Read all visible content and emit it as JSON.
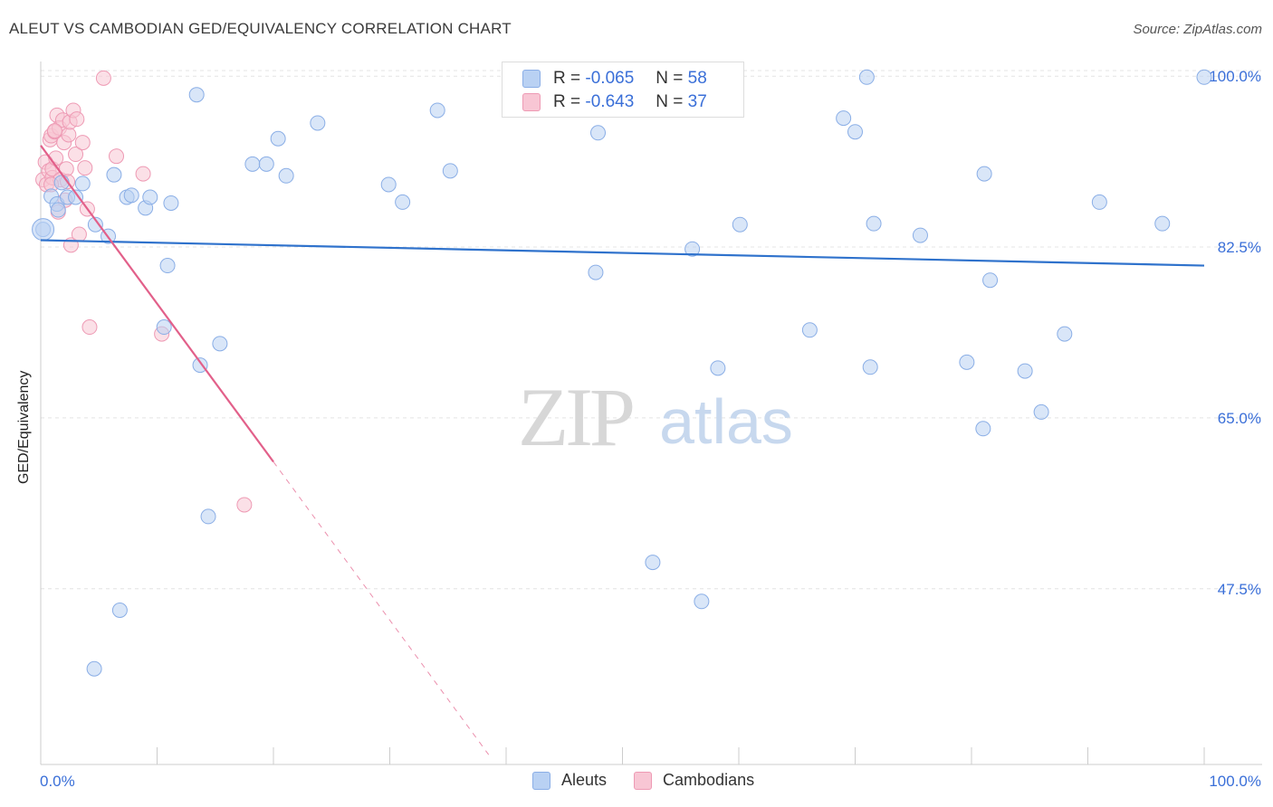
{
  "title": "ALEUT VS CAMBODIAN GED/EQUIVALENCY CORRELATION CHART",
  "source": "Source: ZipAtlas.com",
  "watermark": {
    "zip": "ZIP",
    "atlas": "atlas"
  },
  "legend": {
    "rows": [
      {
        "r_label": "R =",
        "r_value": "-0.065",
        "n_label": "N =",
        "n_value": "58"
      },
      {
        "r_label": "R =",
        "r_value": "-0.643",
        "n_label": "N =",
        "n_value": "37"
      }
    ]
  },
  "bottom_legend": {
    "aleuts": "Aleuts",
    "cambodians": "Cambodians"
  },
  "colors": {
    "aleut_fill": "#b9d1f3",
    "aleut_stroke": "#8aaee6",
    "aleut_line": "#2f72cc",
    "camb_fill": "#f8c6d4",
    "camb_stroke": "#ee9ab4",
    "camb_line": "#e2608a",
    "axis_text": "#3a6fd8"
  },
  "chart_data": {
    "type": "scatter",
    "title": "ALEUT VS CAMBODIAN GED/EQUIVALENCY CORRELATION CHART",
    "xlabel": "",
    "ylabel": "GED/Equivalency",
    "xlim": [
      0,
      100
    ],
    "ylim": [
      29.5,
      101.5
    ],
    "x_tick_labels": [
      "0.0%",
      "100.0%"
    ],
    "y_ticks": [
      47.5,
      65.0,
      82.5,
      100.0
    ],
    "y_tick_labels": [
      "47.5%",
      "65.0%",
      "82.5%",
      "100.0%"
    ],
    "series": [
      {
        "name": "Aleuts",
        "R": -0.065,
        "N": 58,
        "trend": {
          "x": [
            0,
            100
          ],
          "y": [
            83.2,
            80.6
          ]
        },
        "points": [
          [
            0.2,
            84.3
          ],
          [
            0.9,
            87.7
          ],
          [
            1.4,
            86.9
          ],
          [
            1.5,
            86.3
          ],
          [
            1.8,
            89.1
          ],
          [
            2.3,
            87.6
          ],
          [
            3.0,
            87.6
          ],
          [
            3.6,
            89.0
          ],
          [
            4.7,
            84.8
          ],
          [
            5.8,
            83.6
          ],
          [
            6.3,
            89.9
          ],
          [
            7.4,
            87.6
          ],
          [
            7.8,
            87.8
          ],
          [
            9.0,
            86.5
          ],
          [
            9.4,
            87.6
          ],
          [
            10.6,
            74.3
          ],
          [
            10.9,
            80.6
          ],
          [
            11.2,
            87.0
          ],
          [
            13.4,
            98.1
          ],
          [
            13.7,
            70.4
          ],
          [
            14.4,
            54.9
          ],
          [
            15.4,
            72.6
          ],
          [
            18.2,
            91.0
          ],
          [
            19.4,
            91.0
          ],
          [
            20.4,
            93.6
          ],
          [
            21.1,
            89.8
          ],
          [
            23.8,
            95.2
          ],
          [
            29.9,
            88.9
          ],
          [
            31.1,
            87.1
          ],
          [
            34.1,
            96.5
          ],
          [
            35.2,
            90.3
          ],
          [
            47.7,
            79.9
          ],
          [
            47.9,
            94.2
          ],
          [
            52.6,
            50.2
          ],
          [
            56.0,
            82.3
          ],
          [
            56.8,
            46.2
          ],
          [
            58.2,
            70.1
          ],
          [
            59.8,
            99.9
          ],
          [
            60.1,
            84.8
          ],
          [
            66.1,
            74.0
          ],
          [
            69.0,
            95.7
          ],
          [
            70.0,
            94.3
          ],
          [
            71.0,
            99.9
          ],
          [
            71.3,
            70.2
          ],
          [
            71.6,
            84.9
          ],
          [
            75.6,
            83.7
          ],
          [
            79.6,
            70.7
          ],
          [
            81.0,
            63.9
          ],
          [
            81.1,
            90.0
          ],
          [
            81.6,
            79.1
          ],
          [
            84.6,
            69.8
          ],
          [
            86.0,
            65.6
          ],
          [
            88.0,
            73.6
          ],
          [
            91.0,
            87.1
          ],
          [
            96.4,
            84.9
          ],
          [
            100.0,
            99.9
          ],
          [
            6.8,
            45.3
          ],
          [
            4.6,
            39.3
          ]
        ]
      },
      {
        "name": "Cambodians",
        "R": -0.643,
        "N": 37,
        "trend": {
          "x": [
            0,
            20
          ],
          "y": [
            92.9,
            60.5
          ]
        },
        "trend_extrapolated": {
          "x": [
            20,
            38.5
          ],
          "y": [
            60.5,
            30.5
          ]
        },
        "points": [
          [
            0.2,
            89.4
          ],
          [
            0.4,
            91.2
          ],
          [
            0.5,
            88.9
          ],
          [
            0.7,
            90.3
          ],
          [
            0.8,
            93.5
          ],
          [
            0.9,
            93.9
          ],
          [
            1.0,
            89.6
          ],
          [
            1.0,
            90.5
          ],
          [
            1.2,
            94.3
          ],
          [
            1.3,
            91.6
          ],
          [
            1.4,
            96.0
          ],
          [
            1.5,
            86.1
          ],
          [
            1.6,
            94.7
          ],
          [
            1.7,
            89.4
          ],
          [
            1.9,
            95.5
          ],
          [
            2.0,
            93.2
          ],
          [
            2.1,
            87.3
          ],
          [
            2.2,
            90.5
          ],
          [
            2.3,
            89.2
          ],
          [
            2.4,
            94.0
          ],
          [
            2.5,
            95.3
          ],
          [
            2.6,
            82.7
          ],
          [
            2.8,
            96.5
          ],
          [
            3.0,
            92.0
          ],
          [
            3.1,
            95.6
          ],
          [
            3.3,
            83.8
          ],
          [
            3.6,
            93.2
          ],
          [
            3.8,
            90.6
          ],
          [
            4.0,
            86.4
          ],
          [
            4.2,
            74.3
          ],
          [
            5.4,
            99.8
          ],
          [
            6.5,
            91.8
          ],
          [
            8.8,
            90.0
          ],
          [
            10.4,
            73.6
          ],
          [
            17.5,
            56.1
          ],
          [
            1.2,
            94.4
          ],
          [
            0.9,
            88.9
          ]
        ]
      }
    ]
  }
}
